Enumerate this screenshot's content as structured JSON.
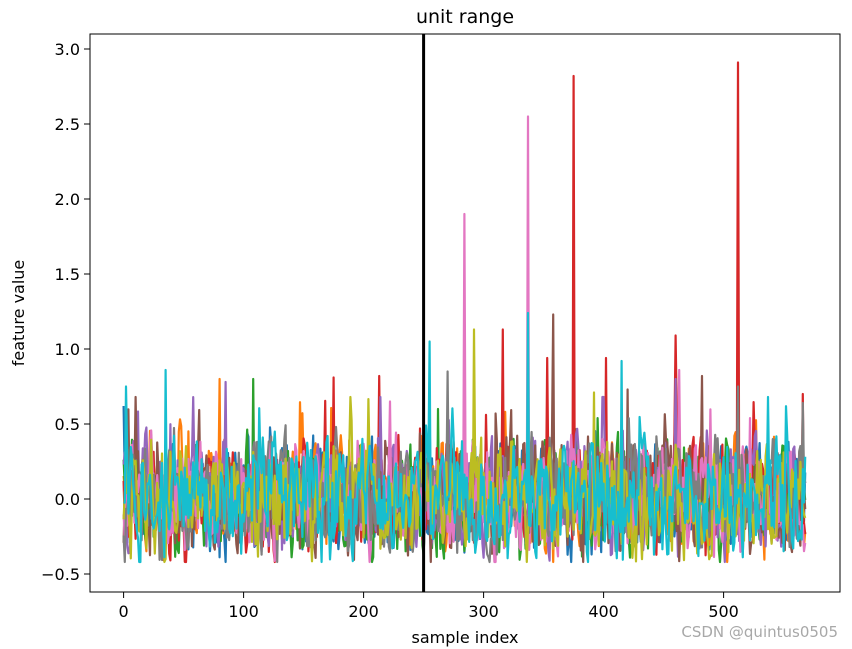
{
  "chart_data": {
    "type": "line",
    "title": "unit range",
    "xlabel": "sample index",
    "ylabel": "feature value",
    "xlim": [
      -28,
      597
    ],
    "ylim": [
      -0.62,
      3.1
    ],
    "xticks": [
      0,
      100,
      200,
      300,
      400,
      500
    ],
    "yticks": [
      -0.5,
      0.0,
      0.5,
      1.0,
      1.5,
      2.0,
      2.5,
      3.0
    ],
    "xtick_labels": [
      "0",
      "100",
      "200",
      "300",
      "400",
      "500"
    ],
    "ytick_labels": [
      "−0.5",
      "0.0",
      "0.5",
      "1.0",
      "1.5",
      "2.0",
      "2.5",
      "3.0"
    ],
    "vline": {
      "x": 250,
      "color": "#000000"
    },
    "n_points": 569,
    "colors": [
      "#1f77b4",
      "#ff7f0e",
      "#2ca02c",
      "#d62728",
      "#9467bd",
      "#8c564b",
      "#e377c2",
      "#7f7f7f",
      "#bcbd22",
      "#17becf"
    ],
    "series": [
      {
        "color": "#1f77b4",
        "peaks": [
          [
            0,
            0.62
          ],
          [
            255,
            0.55
          ]
        ]
      },
      {
        "color": "#ff7f0e",
        "peaks": [
          [
            80,
            0.8
          ],
          [
            248,
            0.42
          ]
        ]
      },
      {
        "color": "#2ca02c",
        "peaks": [
          [
            108,
            0.8
          ],
          [
            262,
            0.6
          ]
        ]
      },
      {
        "color": "#d62728",
        "peaks": [
          [
            375,
            2.82
          ],
          [
            512,
            2.91
          ],
          [
            316,
            1.13
          ],
          [
            353,
            0.94
          ],
          [
            402,
            0.94
          ],
          [
            460,
            1.09
          ],
          [
            213,
            0.82
          ],
          [
            175,
            0.81
          ],
          [
            566,
            0.7
          ]
        ]
      },
      {
        "color": "#9467bd",
        "peaks": [
          [
            85,
            0.78
          ],
          [
            460,
            0.8
          ]
        ]
      },
      {
        "color": "#8c564b",
        "peaks": [
          [
            358,
            1.23
          ],
          [
            420,
            0.73
          ],
          [
            482,
            0.82
          ]
        ]
      },
      {
        "color": "#e377c2",
        "peaks": [
          [
            284,
            1.9
          ],
          [
            337,
            2.55
          ],
          [
            463,
            0.86
          ]
        ]
      },
      {
        "color": "#7f7f7f",
        "peaks": [
          [
            270,
            0.85
          ],
          [
            512,
            0.75
          ],
          [
            566,
            0.64
          ]
        ]
      },
      {
        "color": "#bcbd22",
        "peaks": [
          [
            292,
            1.13
          ],
          [
            392,
            0.71
          ]
        ]
      },
      {
        "color": "#17becf",
        "peaks": [
          [
            2,
            0.75
          ],
          [
            35,
            0.86
          ],
          [
            255,
            1.05
          ],
          [
            337,
            1.24
          ],
          [
            415,
            0.92
          ],
          [
            537,
            0.68
          ]
        ]
      }
    ]
  },
  "watermark": "CSDN @quintus0505"
}
